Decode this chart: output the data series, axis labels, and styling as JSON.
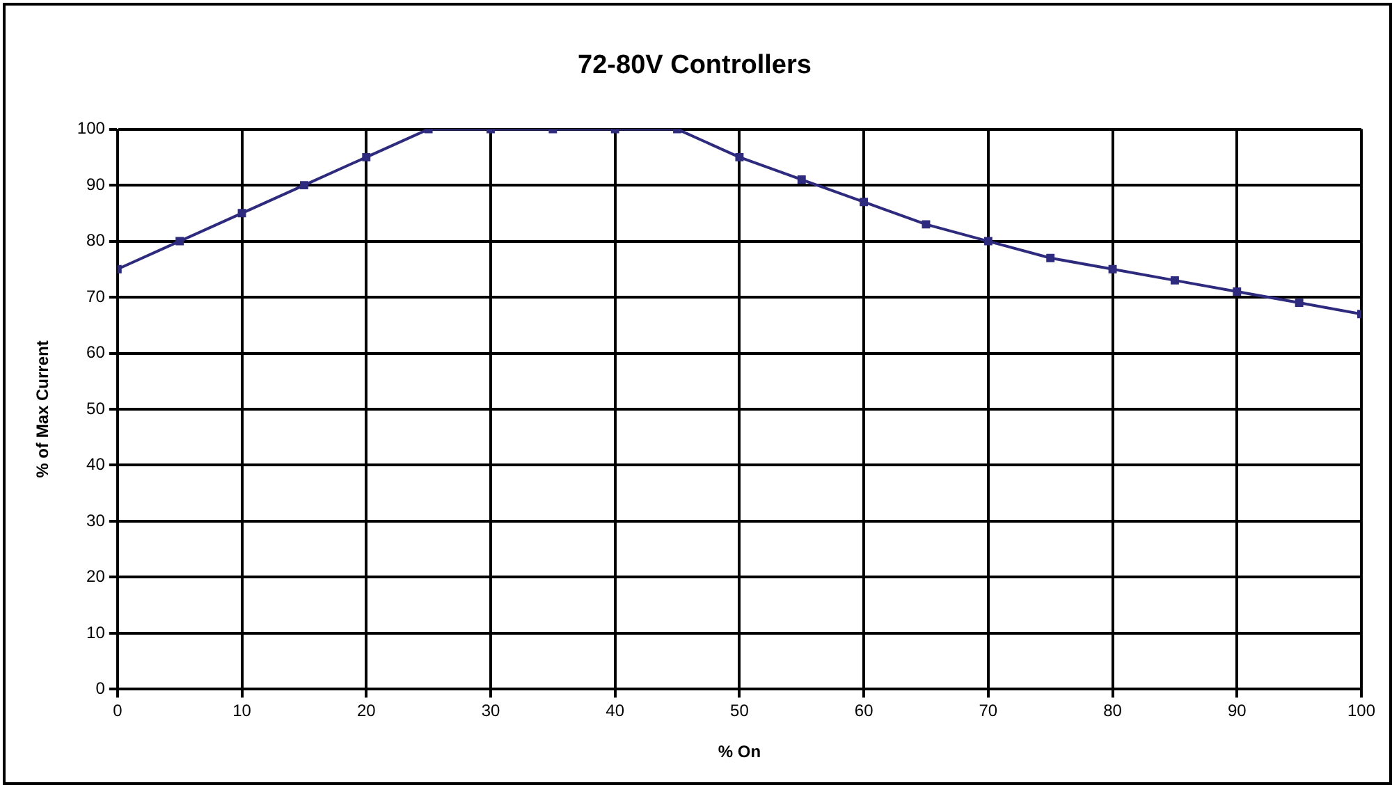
{
  "chart_data": {
    "type": "line",
    "title": "72-80V Controllers",
    "xlabel": "% On",
    "ylabel": "% of Max Current",
    "x": [
      0,
      5,
      10,
      15,
      20,
      25,
      30,
      35,
      40,
      45,
      50,
      55,
      60,
      65,
      70,
      75,
      80,
      85,
      90,
      95,
      100
    ],
    "series": [
      {
        "color": "#2e2a7e",
        "values": [
          75,
          80,
          85,
          90,
          95,
          100,
          100,
          100,
          100,
          100,
          95,
          91,
          87,
          83,
          80,
          77,
          75,
          73,
          71,
          69,
          67
        ]
      }
    ],
    "xlim": [
      0,
      100
    ],
    "xticks": [
      0,
      10,
      20,
      30,
      40,
      50,
      60,
      70,
      80,
      90,
      100
    ],
    "ylim": [
      0,
      100
    ],
    "yticks": [
      0,
      10,
      20,
      30,
      40,
      50,
      60,
      70,
      80,
      90,
      100
    ],
    "grid": true,
    "legend": false,
    "marker": "square",
    "line_style": "solid"
  }
}
